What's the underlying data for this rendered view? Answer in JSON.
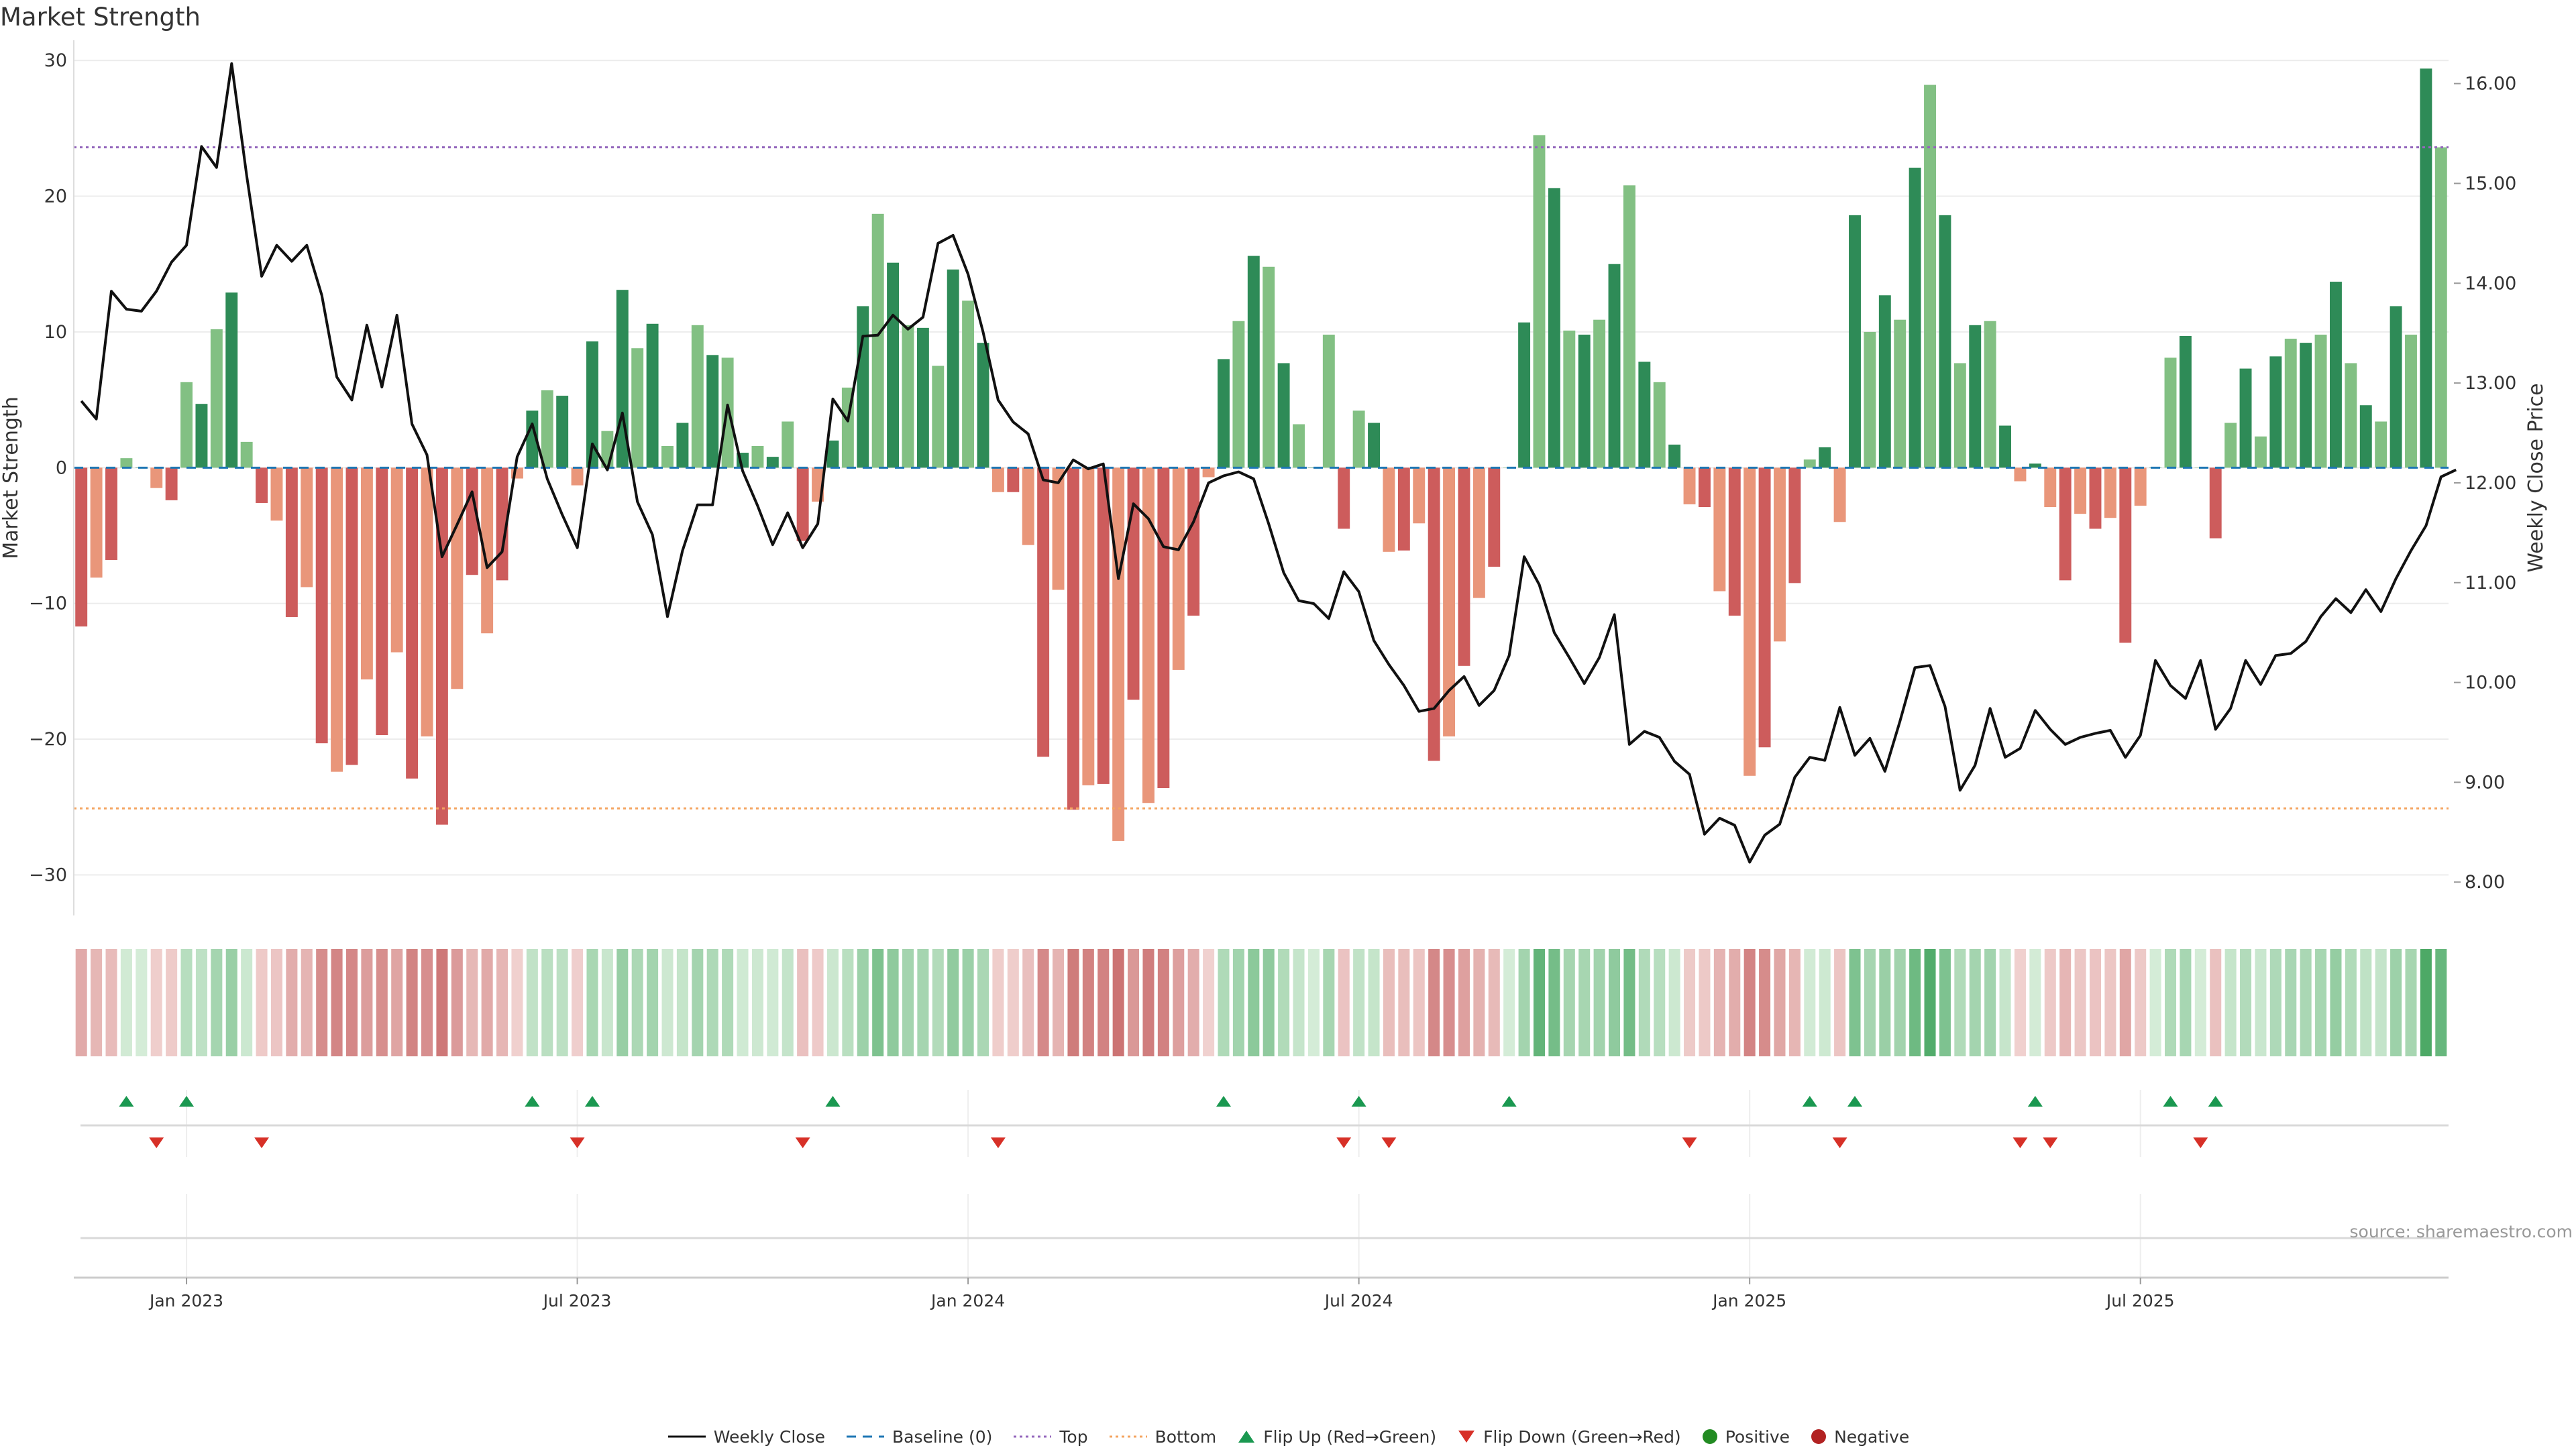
{
  "title": "Market Strength",
  "source": "source: sharemaestro.com",
  "colors": {
    "pos_strong": "#2e8b57",
    "pos_light": "#82c083",
    "neg_strong": "#cd5c5c",
    "neg_light": "#e9967a",
    "line": "#111111",
    "baseline": "#1f77b4",
    "top": "#9467bd",
    "bottom": "#f4a460",
    "flip_up": "#1a9850",
    "flip_down": "#d73027",
    "positive": "#228b22",
    "negative": "#b22222"
  },
  "legend": [
    {
      "key": "weekly_close",
      "label": "Weekly Close"
    },
    {
      "key": "baseline",
      "label": "Baseline (0)"
    },
    {
      "key": "top",
      "label": "Top"
    },
    {
      "key": "bottom",
      "label": "Bottom"
    },
    {
      "key": "flip_up",
      "label": "Flip Up (Red→Green)"
    },
    {
      "key": "flip_down",
      "label": "Flip Down (Green→Red)"
    },
    {
      "key": "positive",
      "label": "Positive"
    },
    {
      "key": "negative",
      "label": "Negative"
    }
  ],
  "chart_data": {
    "type": "bar",
    "title": "Market Strength",
    "ylabel": "Market Strength",
    "y2label": "Weekly Close Price",
    "ylim": [
      -32,
      30.5
    ],
    "y2lim": [
      7.8,
      16.3
    ],
    "yticks": [
      30,
      20,
      10,
      0,
      -10,
      -20,
      -30
    ],
    "ytick_labels": [
      "30",
      "20",
      "10",
      "0",
      "−10",
      "−20",
      "−30"
    ],
    "y2ticks": [
      16,
      15,
      14,
      13,
      12,
      11,
      10,
      9,
      8
    ],
    "y2tick_labels": [
      "16.00",
      "15.00",
      "14.00",
      "13.00",
      "12.00",
      "11.00",
      "10.00",
      "9.00",
      "8.00"
    ],
    "top_line": 23.6,
    "bottom_line": -25.1,
    "x_start_week": -7,
    "xtick_weeks": [
      0,
      26,
      52,
      78,
      104,
      130
    ],
    "xtick_labels": [
      "Jan 2023",
      "Jul 2023",
      "Jan 2024",
      "Jul 2024",
      "Jan 2025",
      "Jul 2025"
    ],
    "bar_tones": [
      "strong",
      "light"
    ],
    "series": [
      {
        "name": "Market Strength",
        "values": [
          -11.7,
          -8.1,
          -6.8,
          0.7,
          0,
          -1.5,
          -2.4,
          6.3,
          4.7,
          10.2,
          12.9,
          1.9,
          -2.6,
          -3.9,
          -11.0,
          -8.8,
          -20.3,
          -22.4,
          -21.9,
          -15.6,
          -19.7,
          -13.6,
          -22.9,
          -19.8,
          -26.3,
          -16.3,
          -7.9,
          -12.2,
          -8.3,
          -0.8,
          4.2,
          5.7,
          5.3,
          -1.3,
          9.3,
          2.7,
          13.1,
          8.8,
          10.6,
          1.6,
          3.3,
          10.5,
          8.3,
          8.1,
          1.1,
          1.6,
          0.8,
          3.4,
          -5.4,
          -2.5,
          2.0,
          5.9,
          11.9,
          18.7,
          15.1,
          10.5,
          10.3,
          7.5,
          14.6,
          12.3,
          9.2,
          -1.8,
          -1.8,
          -5.7,
          -21.3,
          -9.0,
          -25.2,
          -23.4,
          -23.3,
          -27.5,
          -17.1,
          -24.7,
          -23.6,
          -14.9,
          -10.9,
          -0.7,
          8.0,
          10.8,
          15.6,
          14.8,
          7.7,
          3.2,
          0,
          9.8,
          -4.5,
          4.2,
          3.3,
          -6.2,
          -6.1,
          -4.1,
          -21.6,
          -19.8,
          -14.6,
          -9.6,
          -7.3,
          0,
          10.7,
          24.5,
          20.6,
          10.1,
          9.8,
          10.9,
          15.0,
          20.8,
          7.8,
          6.3,
          1.7,
          -2.7,
          -2.9,
          -9.1,
          -10.9,
          -22.7,
          -20.6,
          -12.8,
          -8.5,
          0.6,
          1.5,
          -4.0,
          18.6,
          10.0,
          12.7,
          10.9,
          22.1,
          28.2,
          18.6,
          7.7,
          10.5,
          10.8,
          3.1,
          -1.0,
          0.3,
          -2.9,
          -8.3,
          -3.4,
          -4.5,
          -3.7,
          -12.9,
          -2.8,
          0,
          8.1,
          9.7,
          0,
          -5.2,
          3.3,
          7.3,
          2.3,
          8.2,
          9.5,
          9.2,
          9.8,
          13.7,
          7.7,
          4.6,
          3.4,
          11.9,
          9.8,
          29.4,
          23.6
        ]
      },
      {
        "name": "Weekly Close",
        "values": [
          12.82,
          12.64,
          13.92,
          13.74,
          13.72,
          13.92,
          14.21,
          14.38,
          15.37,
          15.16,
          16.2,
          15.08,
          14.07,
          14.38,
          14.22,
          14.38,
          13.88,
          13.06,
          12.83,
          13.58,
          12.96,
          13.68,
          12.59,
          12.28,
          11.26,
          11.58,
          11.91,
          11.15,
          11.31,
          12.26,
          12.59,
          12.04,
          11.68,
          11.35,
          12.39,
          12.13,
          12.7,
          11.81,
          11.48,
          10.66,
          11.32,
          11.78,
          11.78,
          12.78,
          12.12,
          11.77,
          11.38,
          11.7,
          11.35,
          11.59,
          12.84,
          12.62,
          13.47,
          13.48,
          13.68,
          13.54,
          13.66,
          14.4,
          14.48,
          14.09,
          13.51,
          12.83,
          12.61,
          12.49,
          12.03,
          12.0,
          12.23,
          12.14,
          12.19,
          11.04,
          11.79,
          11.64,
          11.36,
          11.33,
          11.61,
          12.0,
          12.07,
          12.11,
          12.04,
          11.59,
          11.1,
          10.82,
          10.79,
          10.64,
          11.11,
          10.91,
          10.42,
          10.18,
          9.97,
          9.71,
          9.74,
          9.92,
          10.06,
          9.77,
          9.92,
          10.27,
          11.26,
          10.98,
          10.5,
          10.25,
          9.99,
          10.25,
          10.68,
          9.38,
          9.51,
          9.45,
          9.21,
          9.08,
          8.48,
          8.64,
          8.57,
          8.2,
          8.47,
          8.58,
          9.05,
          9.25,
          9.22,
          9.75,
          9.27,
          9.44,
          9.11,
          9.61,
          10.15,
          10.17,
          9.76,
          8.92,
          9.17,
          9.74,
          9.25,
          9.34,
          9.72,
          9.53,
          9.38,
          9.45,
          9.49,
          9.52,
          9.25,
          9.47,
          10.22,
          9.97,
          9.84,
          10.22,
          9.53,
          9.74,
          10.22,
          9.98,
          10.27,
          10.29,
          10.41,
          10.66,
          10.84,
          10.7,
          10.93,
          10.71,
          11.04,
          11.32,
          11.57,
          12.06,
          12.13
        ]
      }
    ],
    "flip_up": [
      3,
      7,
      30,
      34,
      50,
      76,
      85,
      95,
      115,
      118,
      130,
      139,
      142
    ],
    "flip_down": [
      5,
      12,
      33,
      48,
      61,
      84,
      87,
      107,
      117,
      129,
      131,
      141
    ]
  }
}
